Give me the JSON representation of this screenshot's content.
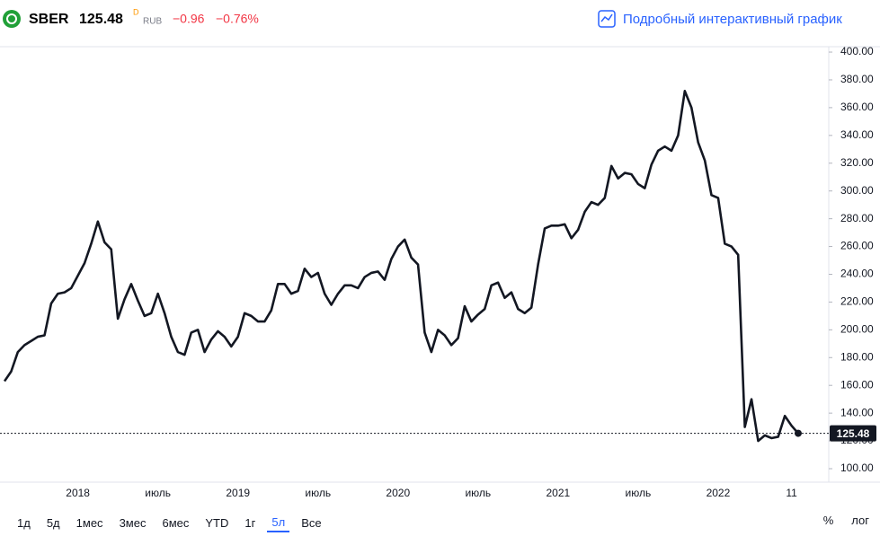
{
  "header": {
    "symbol": "SBER",
    "price": "125.48",
    "price_type": "D",
    "currency": "RUB",
    "change": "−0.96",
    "change_percent": "−0.76%",
    "link": "Подробный интерактивный график"
  },
  "chart_data": {
    "type": "line",
    "color": "#131722",
    "log_scale": false,
    "grid": false,
    "last_price_line": true,
    "categories": [
      null,
      null,
      null,
      null,
      null,
      null,
      null,
      null,
      null,
      null,
      null,
      "2018",
      null,
      null,
      null,
      null,
      null,
      null,
      null,
      null,
      null,
      null,
      null,
      "июль",
      null,
      null,
      null,
      null,
      null,
      null,
      null,
      null,
      null,
      null,
      null,
      "2019",
      null,
      null,
      null,
      null,
      null,
      null,
      null,
      null,
      null,
      null,
      null,
      "июль",
      null,
      null,
      null,
      null,
      null,
      null,
      null,
      null,
      null,
      null,
      null,
      "2020",
      null,
      null,
      null,
      null,
      null,
      null,
      null,
      null,
      null,
      null,
      null,
      "июль",
      null,
      null,
      null,
      null,
      null,
      null,
      null,
      null,
      null,
      null,
      null,
      "2021",
      null,
      null,
      null,
      null,
      null,
      null,
      null,
      null,
      null,
      null,
      null,
      "июль",
      null,
      null,
      null,
      null,
      null,
      null,
      null,
      null,
      null,
      null,
      null,
      "2022",
      null,
      null,
      null,
      null,
      null,
      null,
      null,
      null,
      null,
      null,
      "11",
      null
    ],
    "values": [
      163,
      170,
      184,
      189,
      192,
      195,
      196,
      219,
      226,
      227,
      230,
      239,
      248,
      262,
      278,
      263,
      258,
      208,
      222,
      233,
      221,
      210,
      212,
      226,
      212,
      195,
      184,
      182,
      198,
      200,
      184,
      193,
      199,
      195,
      188,
      195,
      212,
      210,
      206,
      206,
      214,
      233,
      233,
      226,
      228,
      244,
      238,
      241,
      226,
      218,
      226,
      232,
      232,
      230,
      238,
      241,
      242,
      236,
      251,
      260,
      265,
      252,
      247,
      198,
      184,
      200,
      196,
      189,
      194,
      217,
      206,
      211,
      215,
      232,
      234,
      223,
      227,
      215,
      212,
      216,
      247,
      273,
      275,
      275,
      276,
      266,
      272,
      285,
      292,
      290,
      295,
      318,
      309,
      313,
      312,
      305,
      302,
      319,
      329,
      332,
      329,
      340,
      372,
      360,
      335,
      322,
      297,
      295,
      262,
      260,
      254,
      130,
      150,
      120,
      124,
      122,
      123,
      138,
      131,
      125.48
    ],
    "ylim": [
      90.3,
      403.9
    ],
    "yticks": [
      {
        "value": 100,
        "label": "100.00"
      },
      {
        "value": 120,
        "label": "120.00"
      },
      {
        "value": 140,
        "label": "140.00"
      },
      {
        "value": 160,
        "label": "160.00"
      },
      {
        "value": 180,
        "label": "180.00"
      },
      {
        "value": 200,
        "label": "200.00"
      },
      {
        "value": 220,
        "label": "220.00"
      },
      {
        "value": 240,
        "label": "240.00"
      },
      {
        "value": 260,
        "label": "260.00"
      },
      {
        "value": 280,
        "label": "280.00"
      },
      {
        "value": 300,
        "label": "300.00"
      },
      {
        "value": 320,
        "label": "320.00"
      },
      {
        "value": 340,
        "label": "340.00"
      },
      {
        "value": 360,
        "label": "360.00"
      },
      {
        "value": 380,
        "label": "380.00"
      },
      {
        "value": 400,
        "label": "400.00"
      }
    ]
  },
  "toolbar": {
    "ranges": [
      "1д",
      "5д",
      "1мес",
      "3мес",
      "6мес",
      "YTD",
      "1г",
      "5л",
      "Все"
    ],
    "selected_index": 7,
    "percent": "%",
    "log": "лог"
  }
}
